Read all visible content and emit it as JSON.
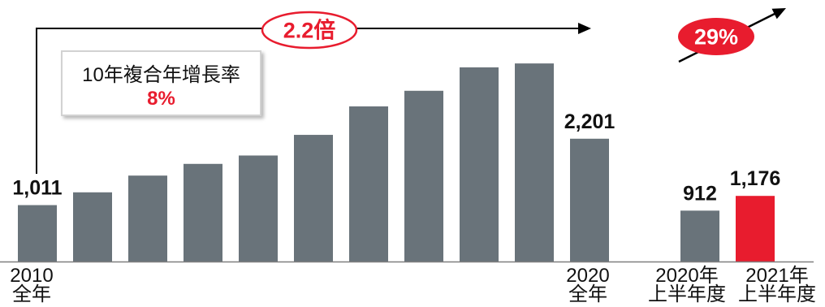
{
  "colors": {
    "bar": "#69737a",
    "highlight": "#e81c2e",
    "arrow": "#000000",
    "axis": "#7f7f7f",
    "text": "#111111"
  },
  "chart_data": {
    "type": "bar",
    "categories": [
      [
        "2010",
        "全年"
      ],
      [],
      [],
      [],
      [],
      [],
      [],
      [],
      [],
      [],
      [
        "2020",
        "全年"
      ],
      [
        "2020年",
        "上半年度"
      ],
      [
        "2021年",
        "上半年度"
      ]
    ],
    "values": [
      1011,
      1240,
      1540,
      1750,
      1900,
      2270,
      2780,
      3060,
      3480,
      3550,
      2201,
      912,
      1176
    ],
    "data_labels": [
      "1,011",
      "",
      "",
      "",
      "",
      "",
      "",
      "",
      "",
      "",
      "2,201",
      "912",
      "1,176"
    ],
    "bar_colors": [
      "#69737a",
      "#69737a",
      "#69737a",
      "#69737a",
      "#69737a",
      "#69737a",
      "#69737a",
      "#69737a",
      "#69737a",
      "#69737a",
      "#69737a",
      "#69737a",
      "#e81c2e"
    ],
    "grid": false,
    "legend": "none",
    "annotations": {
      "ten_year_multiple": "2.2倍",
      "cagr_title": "10年複合年增長率",
      "cagr_value": "8%",
      "half_year_growth": "29%"
    }
  }
}
